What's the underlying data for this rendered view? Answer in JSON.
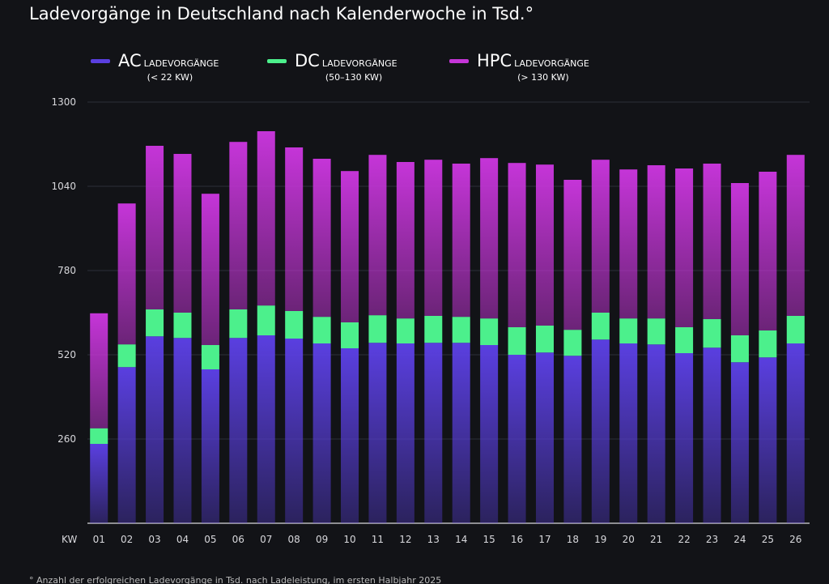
{
  "chart_data": {
    "type": "stacked-bar",
    "title": "Ladevorgänge in Deutschland nach Kalenderwoche  in Tsd.°",
    "x_label": "KW",
    "footnote": "°  Anzahl der erfolgreichen Ladevorgänge in Tsd. nach Ladeleistung, im ersten Halbjahr 2025",
    "categories": [
      "01",
      "02",
      "03",
      "04",
      "05",
      "06",
      "07",
      "08",
      "09",
      "10",
      "11",
      "12",
      "13",
      "14",
      "15",
      "16",
      "17",
      "18",
      "19",
      "20",
      "21",
      "22",
      "23",
      "24",
      "25",
      "26"
    ],
    "series": [
      {
        "name": "AC",
        "label": "LADEVORGÄNGE",
        "sublabel": "(< 22 KW)",
        "color": "#5a3fe0",
        "values": [
          245,
          482,
          577,
          572,
          475,
          572,
          580,
          570,
          555,
          540,
          557,
          555,
          557,
          557,
          550,
          520,
          527,
          517,
          567,
          555,
          552,
          525,
          542,
          497,
          512,
          555
        ]
      },
      {
        "name": "DC",
        "label": "LADEVORGÄNGE",
        "sublabel": "(50–130 KW)",
        "color": "#4cf08c",
        "values": [
          48,
          70,
          83,
          78,
          75,
          88,
          92,
          85,
          82,
          80,
          85,
          77,
          83,
          80,
          82,
          85,
          83,
          80,
          83,
          77,
          80,
          80,
          88,
          83,
          83,
          85
        ]
      },
      {
        "name": "HPC",
        "label": "LADEVORGÄNGE",
        "sublabel": "(> 130 KW)",
        "color": "#c535d8",
        "values": [
          355,
          435,
          505,
          490,
          467,
          517,
          538,
          505,
          488,
          467,
          495,
          483,
          482,
          473,
          495,
          507,
          497,
          463,
          472,
          460,
          473,
          490,
          480,
          470,
          490,
          497
        ]
      }
    ],
    "ylim": [
      0,
      1300
    ],
    "yticks": [
      260,
      520,
      780,
      1040,
      1300
    ],
    "grid": true
  }
}
